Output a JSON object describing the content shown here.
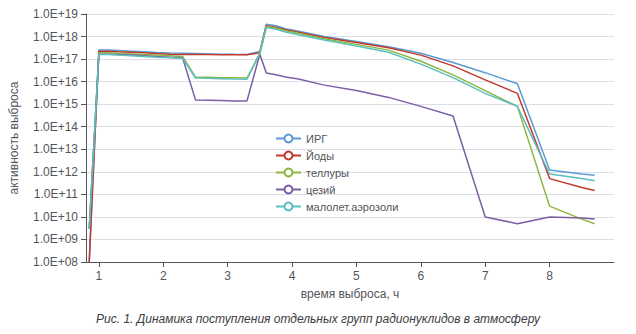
{
  "chart_data": {
    "type": "line",
    "xlabel": "время выброса, ч",
    "ylabel": "активность выброса",
    "caption": "Рис. 1. Динамика поступления отдельных групп радионуклидов в атмосферу",
    "log": "y",
    "grid": true,
    "legend": "center",
    "xlim": [
      0.8,
      9.0
    ],
    "xticks": [
      1,
      2,
      3,
      4,
      5,
      6,
      7,
      8
    ],
    "ylim": [
      100000000.0,
      1e+19
    ],
    "yticks": [
      {
        "value": 100000000.0,
        "label": "1.0E+08"
      },
      {
        "value": 1000000000.0,
        "label": "1.0E+09"
      },
      {
        "value": 10000000000.0,
        "label": "1.0E+10"
      },
      {
        "value": 100000000000.0,
        "label": "1.0E+11"
      },
      {
        "value": 1000000000000.0,
        "label": "1.0E+12"
      },
      {
        "value": 10000000000000.0,
        "label": "1.0E+13"
      },
      {
        "value": 100000000000000.0,
        "label": "1.0E+14"
      },
      {
        "value": 1000000000000000.0,
        "label": "1.0E+15"
      },
      {
        "value": 1e+16,
        "label": "1.0E+16"
      },
      {
        "value": 1e+17,
        "label": "1.0E+17"
      },
      {
        "value": 1e+18,
        "label": "1.0E+18"
      },
      {
        "value": 1e+19,
        "label": "1.0E+19"
      }
    ],
    "x": [
      0.85,
      1.0,
      1.15,
      1.3,
      1.5,
      1.7,
      1.9,
      2.1,
      2.3,
      2.5,
      2.7,
      2.9,
      3.1,
      3.3,
      3.5,
      3.6,
      3.75,
      3.9,
      4.1,
      4.5,
      5.0,
      5.5,
      6.0,
      6.5,
      7.0,
      7.5,
      8.0,
      8.5,
      8.7
    ],
    "series": [
      {
        "name": "ИРГ",
        "color": "#5b9bd5",
        "values": [
          100000000.0,
          2.5e+17,
          2.5e+17,
          2.4e+17,
          2.25e+17,
          2.1e+17,
          1.95e+17,
          1.85e+17,
          1.8e+17,
          1.75e+17,
          1.7e+17,
          1.65e+17,
          1.62e+17,
          1.6e+17,
          2.2e+17,
          3.5e+18,
          3e+18,
          2.2e+18,
          1.7e+18,
          1e+18,
          6e+17,
          3.5e+17,
          1.8e+17,
          7e+16,
          2.5e+16,
          8000000000000000.0,
          1200000000000.0,
          800000000000.0,
          700000000000.0
        ]
      },
      {
        "name": "Йоды",
        "color": "#c0392b",
        "values": [
          100000000.0,
          2.2e+17,
          2.2e+17,
          2.1e+17,
          2e+17,
          1.9e+17,
          1.75e+17,
          1.65e+17,
          1.6e+17,
          1.6e+17,
          1.58e+17,
          1.56e+17,
          1.55e+17,
          1.55e+17,
          1.9e+17,
          3e+18,
          2.6e+18,
          2e+18,
          1.55e+18,
          9e+17,
          5.5e+17,
          3.2e+17,
          1.5e+17,
          5e+16,
          1.2e+16,
          3000000000000000.0,
          500000000000.0,
          200000000000.0,
          150000000000.0
        ]
      },
      {
        "name": "теллуры",
        "color": "#8db640",
        "values": [
          3000000000.0,
          1.9e+17,
          1.9e+17,
          1.8e+17,
          1.7e+17,
          1.6e+17,
          1.5e+17,
          1.4e+17,
          1.3e+17,
          1.6e+16,
          1.55e+16,
          1.5e+16,
          1.48e+16,
          1.45e+16,
          1.85e+17,
          2.8e+18,
          2.4e+18,
          1.8e+18,
          1.4e+18,
          8e+17,
          4.5e+17,
          2.5e+17,
          8e+16,
          2e+16,
          4000000000000000.0,
          800000000000000.0,
          30000000000.0,
          8000000000.0,
          5000000000.0
        ]
      },
      {
        "name": "цезий",
        "color": "#7b5ea7",
        "values": [
          3000000000.0,
          1.65e+17,
          1.65e+17,
          1.6e+17,
          1.5e+17,
          1.4e+17,
          1.3e+17,
          1.2e+17,
          1.15e+17,
          1550000000000000.0,
          1500000000000000.0,
          1450000000000000.0,
          1400000000000000.0,
          1400000000000000.0,
          1.65e+17,
          2.4e+16,
          2e+16,
          1.6e+16,
          1.3e+16,
          7000000000000000.0,
          4000000000000000.0,
          2000000000000000.0,
          800000000000000.0,
          300000000000000.0,
          10000000000.0,
          5000000000.0,
          10000000000.0,
          9000000000.0,
          8000000000.0
        ]
      },
      {
        "name": "малолет.аэрозоли",
        "color": "#5bbfbf",
        "values": [
          3000000000.0,
          1.6e+17,
          1.6e+17,
          1.5e+17,
          1.4e+17,
          1.3e+17,
          1.2e+17,
          1.15e+17,
          1.1e+17,
          1.45e+16,
          1.4e+16,
          1.35e+16,
          1.3e+16,
          1.28e+16,
          1.75e+17,
          2.5e+18,
          2.1e+18,
          1.6e+18,
          1.2e+18,
          7e+17,
          3.8e+17,
          2e+17,
          6e+16,
          1.5e+16,
          3000000000000000.0,
          800000000000000.0,
          800000000000.0,
          500000000000.0,
          400000000000.0
        ]
      }
    ]
  }
}
